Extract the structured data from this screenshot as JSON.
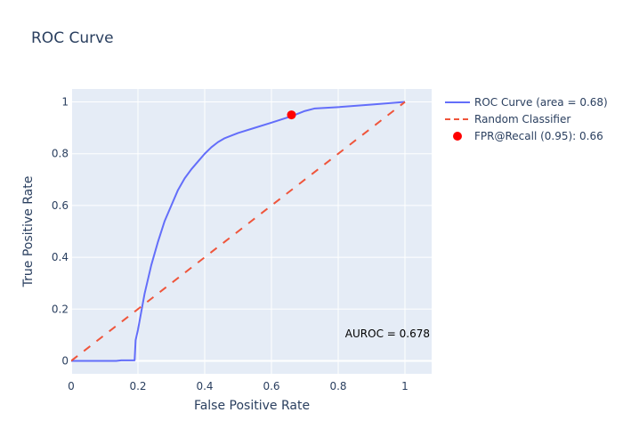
{
  "chart_data": {
    "type": "line",
    "title": "ROC Curve",
    "xlabel": "False Positive Rate",
    "ylabel": "True Positive Rate",
    "xlim": [
      0,
      1.08
    ],
    "ylim": [
      -0.05,
      1.05
    ],
    "x_ticks": [
      0,
      0.2,
      0.4,
      0.6,
      0.8,
      1
    ],
    "x_tick_labels": [
      "0",
      "0.2",
      "0.4",
      "0.6",
      "0.8",
      "1"
    ],
    "y_ticks": [
      0,
      0.2,
      0.4,
      0.6,
      0.8,
      1
    ],
    "y_tick_labels": [
      "0",
      "0.2",
      "0.4",
      "0.6",
      "0.8",
      "1"
    ],
    "grid": true,
    "legend_position": "right",
    "series": [
      {
        "name": "ROC Curve (area = 0.68)",
        "kind": "line",
        "color": "#636efa",
        "dash": "solid",
        "x": [
          0,
          0.05,
          0.1,
          0.135,
          0.15,
          0.19,
          0.193,
          0.2,
          0.21,
          0.22,
          0.24,
          0.26,
          0.28,
          0.3,
          0.32,
          0.34,
          0.36,
          0.38,
          0.4,
          0.42,
          0.44,
          0.46,
          0.5,
          0.55,
          0.6,
          0.66,
          0.7,
          0.73,
          0.8,
          0.9,
          1.0
        ],
        "y": [
          0,
          0,
          0,
          0,
          0.002,
          0.002,
          0.08,
          0.12,
          0.19,
          0.26,
          0.37,
          0.46,
          0.54,
          0.6,
          0.66,
          0.705,
          0.74,
          0.77,
          0.8,
          0.825,
          0.845,
          0.86,
          0.88,
          0.9,
          0.92,
          0.945,
          0.965,
          0.975,
          0.98,
          0.99,
          1.0
        ]
      },
      {
        "name": "Random Classifier",
        "kind": "line",
        "color": "#ef553b",
        "dash": "dash",
        "x": [
          0,
          1
        ],
        "y": [
          0,
          1
        ]
      },
      {
        "name": "FPR@Recall (0.95): 0.66",
        "kind": "marker",
        "color": "#ff0000",
        "x": [
          0.66
        ],
        "y": [
          0.95
        ]
      }
    ],
    "annotations": [
      {
        "text": "AUROC = 0.678",
        "anchor": "bottom-right"
      }
    ]
  },
  "colors": {
    "plot_background": "#e5ecf6",
    "grid": "#ffffff",
    "text": "#2a3f5f"
  }
}
